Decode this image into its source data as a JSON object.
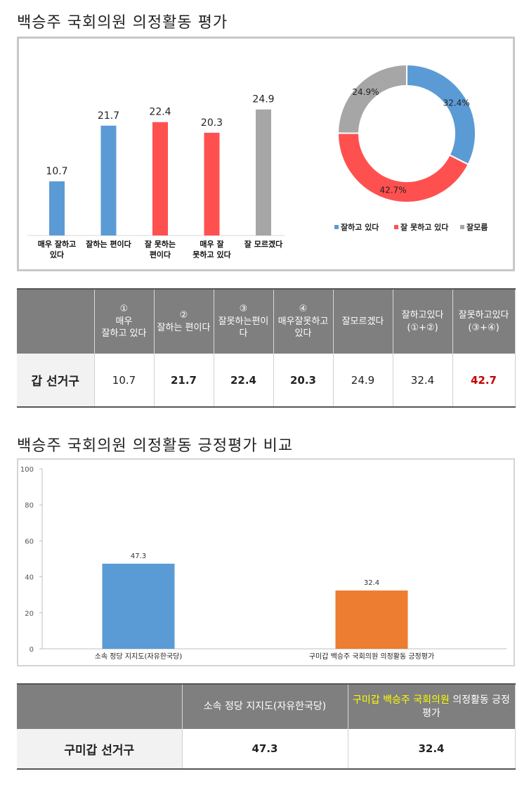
{
  "title1": "백승주 국회의원 의정활동 평가",
  "title2": "백승주 국회의원 의정활동 긍정평가 비교",
  "chart_data": [
    {
      "type": "bar",
      "categories": [
        [
          "매우 잘하고",
          "있다"
        ],
        [
          "잘하는 편이다"
        ],
        [
          "잘 못하는",
          "편이다"
        ],
        [
          "매우 잘",
          "못하고 있다"
        ],
        [
          "잘 모르겠다"
        ]
      ],
      "values": [
        10.7,
        21.7,
        22.4,
        20.3,
        24.9
      ],
      "colors": [
        "#5b9bd5",
        "#5b9bd5",
        "#ff5050",
        "#ff5050",
        "#a6a6a6"
      ]
    },
    {
      "type": "pie",
      "labels": [
        "잘하고 있다",
        "잘 못하고 있다",
        "잘모름"
      ],
      "values": [
        32.4,
        42.7,
        24.9
      ],
      "value_labels": [
        "32.4%",
        "42.7%",
        "24.9%"
      ],
      "colors": [
        "#5b9bd5",
        "#ff5050",
        "#a6a6a6"
      ],
      "legend": "bottom"
    },
    {
      "type": "bar",
      "categories": [
        "소속 정당 지지도(자유한국당)",
        "구미갑 백승주 국회의원 의정활동 긍정평가"
      ],
      "values": [
        47.3,
        32.4
      ],
      "colors": [
        "#5b9bd5",
        "#ed7d31"
      ],
      "ylim": [
        0,
        100
      ],
      "yticks": [
        0,
        20,
        40,
        60,
        80,
        100
      ]
    }
  ],
  "table1": {
    "headers": [
      [
        "①",
        "매우",
        "잘하고 있다"
      ],
      [
        "②",
        "잘하는 편이다"
      ],
      [
        "③",
        "잘못하는편이다"
      ],
      [
        "④",
        "매우잘못하고",
        "있다"
      ],
      [
        "잘모르겠다"
      ],
      [
        "잘하고있다",
        "(①+②)"
      ],
      [
        "잘못하고있다",
        "(③+④)"
      ]
    ],
    "row_label": "갑 선거구",
    "values": [
      "10.7",
      "21.7",
      "22.4",
      "20.3",
      "24.9",
      "32.4",
      "42.7"
    ],
    "bold": [
      false,
      true,
      true,
      true,
      false,
      false,
      true
    ],
    "highlight_color": "#c00000"
  },
  "table2": {
    "header1": "소속 정당 지지도(자유한국당)",
    "header2_highlight": "구미갑 백승주 국회의원",
    "header2_rest": " 의정활동 긍정평가",
    "row_label": "구미갑 선거구",
    "values": [
      "47.3",
      "32.4"
    ]
  }
}
